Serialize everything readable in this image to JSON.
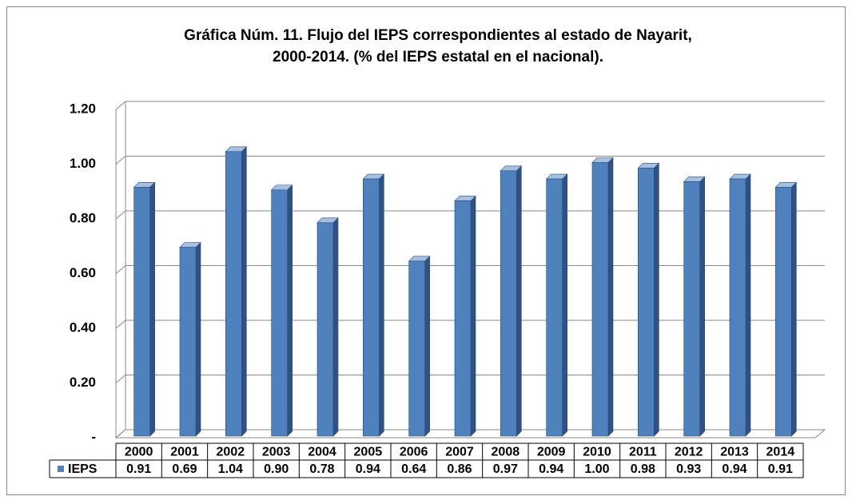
{
  "chart_data": {
    "type": "bar3d",
    "title": "Gráfica Núm. 11. Flujo del IEPS correspondientes al estado de Nayarit,",
    "subtitle": "2000-2014. (% del IEPS estatal en el nacional).",
    "categories": [
      "2000",
      "2001",
      "2002",
      "2003",
      "2004",
      "2005",
      "2006",
      "2007",
      "2008",
      "2009",
      "2010",
      "2011",
      "2012",
      "2013",
      "2014"
    ],
    "series": [
      {
        "name": "IEPS",
        "color": "#4f81bd",
        "values": [
          0.91,
          0.69,
          1.04,
          0.9,
          0.78,
          0.94,
          0.64,
          0.86,
          0.97,
          0.94,
          1.0,
          0.98,
          0.93,
          0.94,
          0.91
        ],
        "value_labels": [
          "0.91",
          "0.69",
          "1.04",
          "0.90",
          "0.78",
          "0.94",
          "0.64",
          "0.86",
          "0.97",
          "0.94",
          "1.00",
          "0.98",
          "0.93",
          "0.94",
          "0.91"
        ]
      }
    ],
    "ylim": [
      0,
      1.2
    ],
    "yticks": [
      {
        "value": 0,
        "label": "-"
      },
      {
        "value": 0.2,
        "label": "0.20"
      },
      {
        "value": 0.4,
        "label": "0.40"
      },
      {
        "value": 0.6,
        "label": "0.60"
      },
      {
        "value": 0.8,
        "label": "0.80"
      },
      {
        "value": 1.0,
        "label": "1.00"
      },
      {
        "value": 1.2,
        "label": "1.20"
      }
    ],
    "grid": true,
    "data_table": true
  }
}
